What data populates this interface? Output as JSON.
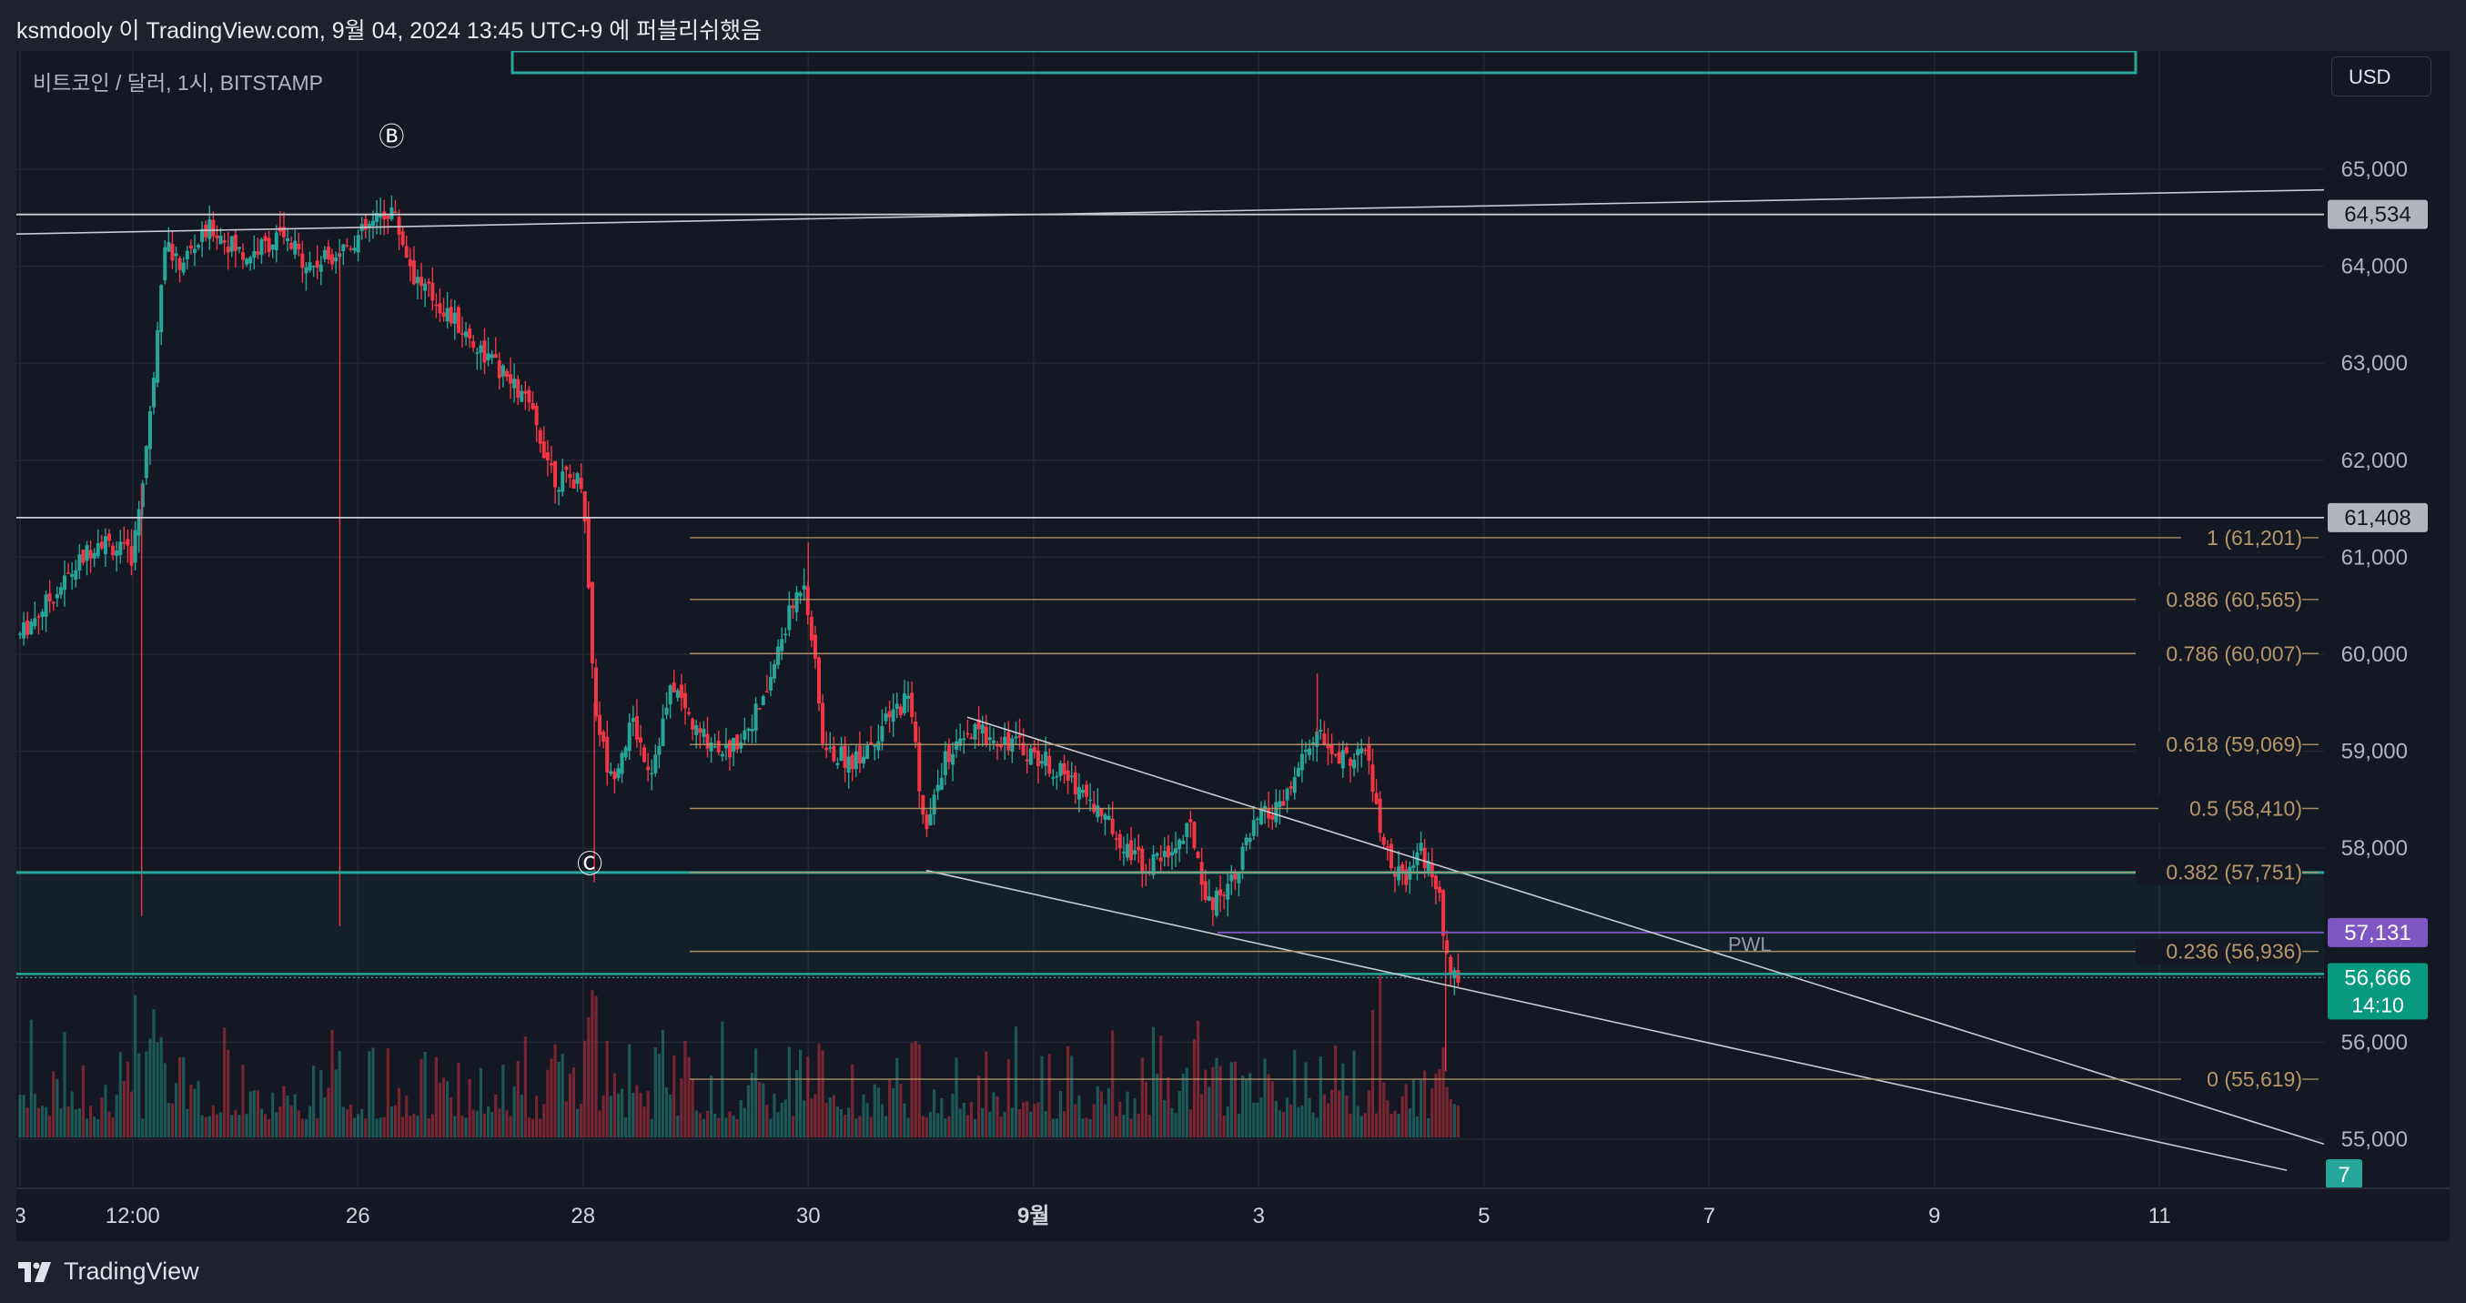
{
  "header": {
    "title": "ksmdooly 이 TradingView.com, 9월 04, 2024 13:45 UTC+9 에 퍼블리쉬했음"
  },
  "symbol": {
    "label": "비트코인 / 달러, 1시, BITSTAMP"
  },
  "currency": {
    "label": "USD"
  },
  "footer": {
    "brand": "TradingView"
  },
  "chart_data": {
    "type": "candlestick",
    "y_axis": {
      "min": 54800,
      "max": 65800,
      "ticks": [
        {
          "v": 65000,
          "label": "65,000"
        },
        {
          "v": 64000,
          "label": "64,000"
        },
        {
          "v": 63000,
          "label": "63,000"
        },
        {
          "v": 62000,
          "label": "62,000"
        },
        {
          "v": 61000,
          "label": "61,000"
        },
        {
          "v": 60000,
          "label": "60,000"
        },
        {
          "v": 59000,
          "label": "59,000"
        },
        {
          "v": 58000,
          "label": "58,000"
        },
        {
          "v": 56000,
          "label": "56,000"
        },
        {
          "v": 55000,
          "label": "55,000"
        }
      ]
    },
    "x_axis": {
      "ticks": [
        {
          "t": 0,
          "label": "3"
        },
        {
          "t": 0.5,
          "label": "12:00"
        },
        {
          "t": 1.5,
          "label": "26"
        },
        {
          "t": 2.5,
          "label": "28"
        },
        {
          "t": 3.5,
          "label": "30"
        },
        {
          "t": 4.5,
          "label": "9월",
          "bold": true
        },
        {
          "t": 5.5,
          "label": "3"
        },
        {
          "t": 6.5,
          "label": "5"
        },
        {
          "t": 7.5,
          "label": "7"
        },
        {
          "t": 8.5,
          "label": "9"
        },
        {
          "t": 9.5,
          "label": "11"
        }
      ]
    },
    "price_path": [
      [
        0,
        60200
      ],
      [
        0.18,
        60700
      ],
      [
        0.35,
        61200
      ],
      [
        0.5,
        61000
      ],
      [
        0.58,
        62500
      ],
      [
        0.64,
        64300
      ],
      [
        0.7,
        64000
      ],
      [
        0.85,
        64400
      ],
      [
        1.0,
        64100
      ],
      [
        1.15,
        64300
      ],
      [
        1.3,
        64000
      ],
      [
        1.5,
        64300
      ],
      [
        1.65,
        64600
      ],
      [
        1.75,
        63900
      ],
      [
        1.9,
        63500
      ],
      [
        2.1,
        63000
      ],
      [
        2.25,
        62600
      ],
      [
        2.38,
        61800
      ],
      [
        2.5,
        61800
      ],
      [
        2.55,
        59500
      ],
      [
        2.62,
        58700
      ],
      [
        2.72,
        59300
      ],
      [
        2.8,
        58800
      ],
      [
        2.9,
        59700
      ],
      [
        3.0,
        59200
      ],
      [
        3.15,
        59000
      ],
      [
        3.3,
        59500
      ],
      [
        3.4,
        60300
      ],
      [
        3.48,
        60800
      ],
      [
        3.52,
        60100
      ],
      [
        3.57,
        59000
      ],
      [
        3.7,
        58900
      ],
      [
        3.85,
        59300
      ],
      [
        3.95,
        59600
      ],
      [
        4.02,
        58100
      ],
      [
        4.1,
        58900
      ],
      [
        4.25,
        59200
      ],
      [
        4.4,
        59100
      ],
      [
        4.55,
        58900
      ],
      [
        4.72,
        58600
      ],
      [
        4.85,
        58200
      ],
      [
        5.0,
        57800
      ],
      [
        5.12,
        58000
      ],
      [
        5.2,
        58200
      ],
      [
        5.28,
        57400
      ],
      [
        5.38,
        57700
      ],
      [
        5.5,
        58300
      ],
      [
        5.6,
        58400
      ],
      [
        5.75,
        59200
      ],
      [
        5.85,
        58900
      ],
      [
        5.98,
        59000
      ],
      [
        6.05,
        58000
      ],
      [
        6.15,
        57600
      ],
      [
        6.22,
        58000
      ],
      [
        6.3,
        57500
      ],
      [
        6.35,
        56600
      ],
      [
        6.4,
        56750
      ]
    ],
    "last_price": 56666,
    "horizontal_lines": [
      {
        "price": 64534,
        "label": "64,534",
        "color": "#c8cbd2"
      },
      {
        "price": 61408,
        "label": "61,408",
        "color": "#c8cbd2"
      },
      {
        "price": 57131,
        "label": "57,131",
        "color": "#7e57c2"
      }
    ],
    "last_price_label": {
      "price": 56666,
      "label": "56,666",
      "countdown": "14:10",
      "color": "#089981"
    },
    "fibonacci": {
      "levels": [
        {
          "price": 61201,
          "label": "1 (61,201)"
        },
        {
          "price": 60565,
          "label": "0.886 (60,565)"
        },
        {
          "price": 60007,
          "label": "0.786 (60,007)"
        },
        {
          "price": 59069,
          "label": "0.618 (59,069)"
        },
        {
          "price": 58410,
          "label": "0.5 (58,410)"
        },
        {
          "price": 57751,
          "label": "0.382 (57,751)"
        },
        {
          "price": 56936,
          "label": "0.236 (56,936)"
        },
        {
          "price": 55619,
          "label": "0 (55,619)"
        }
      ],
      "color": "#b5976a"
    },
    "annotations": [
      {
        "text": "Ⓑ",
        "t": 1.65,
        "price": 65250
      },
      {
        "text": "Ⓒ",
        "t": 2.53,
        "price": 57750
      },
      {
        "text": "PWL",
        "t": 7.68,
        "price": 56936
      }
    ],
    "zones": {
      "upper": 57750,
      "lower": 56666
    },
    "badge": {
      "label": "7",
      "color": "#26a69a"
    },
    "colors": {
      "up": "#26a69a",
      "down": "#f23645",
      "background": "#141823",
      "grid": "#232733"
    }
  }
}
